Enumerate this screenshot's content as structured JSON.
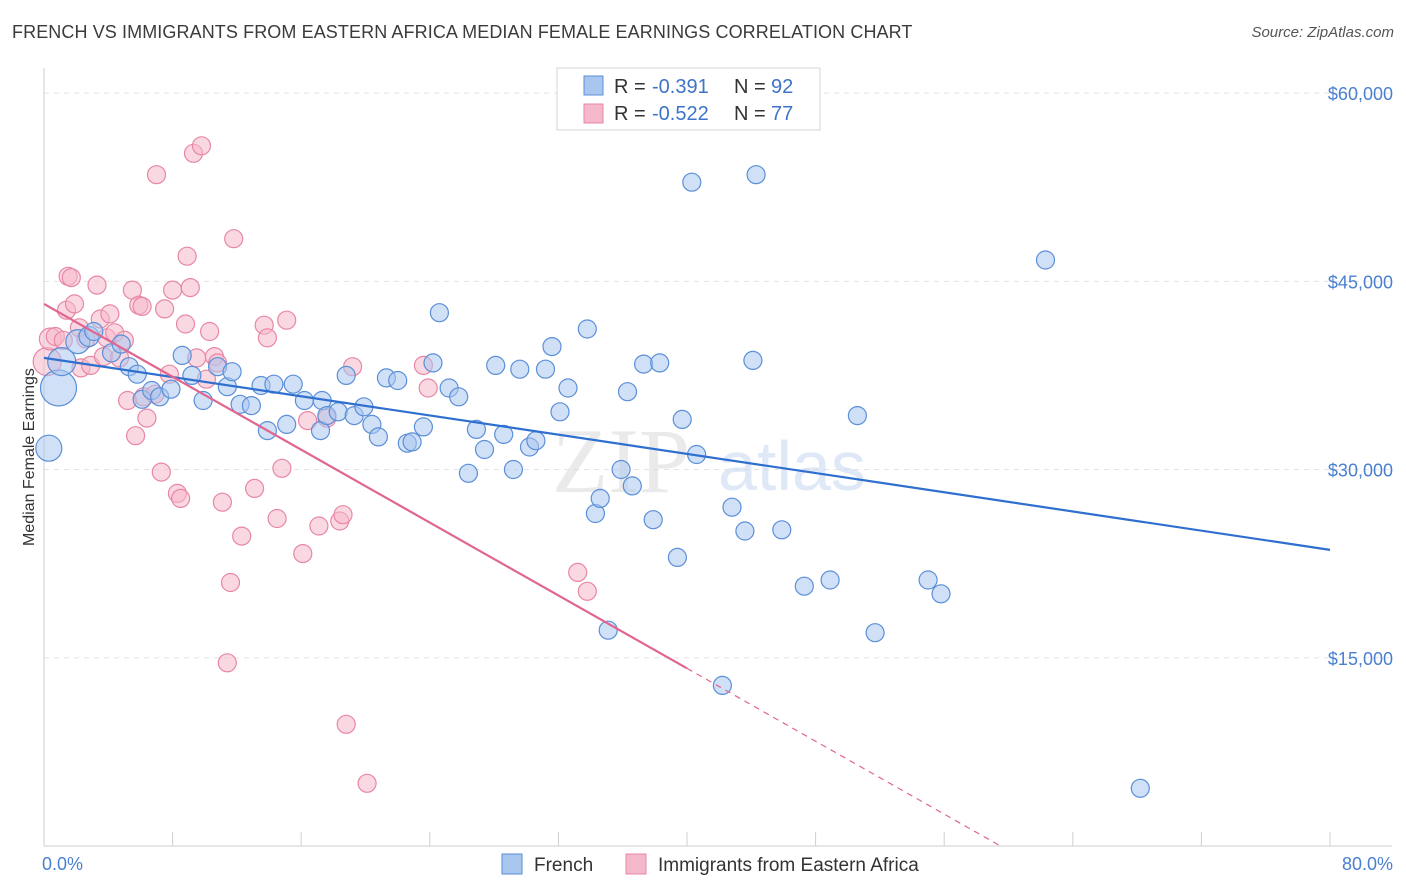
{
  "title": "FRENCH VS IMMIGRANTS FROM EASTERN AFRICA MEDIAN FEMALE EARNINGS CORRELATION CHART",
  "source": "Source: ZipAtlas.com",
  "watermark": {
    "zip": "ZIP",
    "atlas": "atlas"
  },
  "legend": {
    "r_label": "R =",
    "n_label": "N =",
    "french": {
      "r": "-0.391",
      "n": "92"
    },
    "immigrants": {
      "r": "-0.522",
      "n": "77"
    }
  },
  "colors": {
    "blue_fill": "#a9c6ef",
    "blue_stroke": "#5b8fd8",
    "blue_line": "#2f6fcf",
    "pink_fill": "#f5b8cb",
    "pink_stroke": "#e887a5",
    "pink_line": "#e0668f",
    "tick_text": "#4a7fd0",
    "grid": "#e3e3e3"
  },
  "chart_data": {
    "type": "scatter",
    "ylabel": "Median Female Earnings",
    "x_ticks": [
      "0.0%",
      "80.0%"
    ],
    "xlim": [
      0,
      80
    ],
    "ylim": [
      0,
      62000
    ],
    "y_ticks": [
      {
        "value": 15000,
        "label": "$15,000"
      },
      {
        "value": 30000,
        "label": "$30,000"
      },
      {
        "value": 45000,
        "label": "$45,000"
      },
      {
        "value": 60000,
        "label": "$60,000"
      }
    ],
    "grid": true,
    "series": [
      {
        "name": "French",
        "color": "blue",
        "r": -0.391,
        "n": 92,
        "trend": {
          "x0": 0,
          "y0": 38900,
          "x1": 80,
          "y1": 23600,
          "dashed_from": null
        },
        "points": [
          [
            0.3,
            31700,
            13
          ],
          [
            0.9,
            36500,
            18
          ],
          [
            1.1,
            38600,
            14
          ],
          [
            2.1,
            40200,
            12
          ],
          [
            2.8,
            40600,
            10
          ],
          [
            3.1,
            41000,
            9
          ],
          [
            4.2,
            39300,
            9
          ],
          [
            4.8,
            40000,
            9
          ],
          [
            5.3,
            38200,
            9
          ],
          [
            5.8,
            37600,
            9
          ],
          [
            6.1,
            35600,
            9
          ],
          [
            6.7,
            36300,
            9
          ],
          [
            7.2,
            35800,
            9
          ],
          [
            7.9,
            36400,
            9
          ],
          [
            8.6,
            39100,
            9
          ],
          [
            9.2,
            37500,
            9
          ],
          [
            9.9,
            35500,
            9
          ],
          [
            10.8,
            38200,
            9
          ],
          [
            11.4,
            36600,
            9
          ],
          [
            11.7,
            37800,
            9
          ],
          [
            12.2,
            35200,
            9
          ],
          [
            12.9,
            35100,
            9
          ],
          [
            13.5,
            36700,
            9
          ],
          [
            13.9,
            33100,
            9
          ],
          [
            14.3,
            36800,
            9
          ],
          [
            15.1,
            33600,
            9
          ],
          [
            15.5,
            36800,
            9
          ],
          [
            16.2,
            35500,
            9
          ],
          [
            17.2,
            33100,
            9
          ],
          [
            17.3,
            35500,
            9
          ],
          [
            17.6,
            34300,
            9
          ],
          [
            18.3,
            34600,
            9
          ],
          [
            18.8,
            37500,
            9
          ],
          [
            19.3,
            34300,
            9
          ],
          [
            19.9,
            35000,
            9
          ],
          [
            20.4,
            33600,
            9
          ],
          [
            20.8,
            32600,
            9
          ],
          [
            21.3,
            37300,
            9
          ],
          [
            22.0,
            37100,
            9
          ],
          [
            22.6,
            32100,
            9
          ],
          [
            22.9,
            32200,
            9
          ],
          [
            23.6,
            33400,
            9
          ],
          [
            24.2,
            38500,
            9
          ],
          [
            24.6,
            42500,
            9
          ],
          [
            25.2,
            36500,
            9
          ],
          [
            25.8,
            35800,
            9
          ],
          [
            26.4,
            29700,
            9
          ],
          [
            26.9,
            33200,
            9
          ],
          [
            27.4,
            31600,
            9
          ],
          [
            28.1,
            38300,
            9
          ],
          [
            28.6,
            32800,
            9
          ],
          [
            29.2,
            30000,
            9
          ],
          [
            29.6,
            38000,
            9
          ],
          [
            30.2,
            31800,
            9
          ],
          [
            30.6,
            32300,
            9
          ],
          [
            31.2,
            38000,
            9
          ],
          [
            31.6,
            39800,
            9
          ],
          [
            32.1,
            34600,
            9
          ],
          [
            32.6,
            36500,
            9
          ],
          [
            33.8,
            41200,
            9
          ],
          [
            34.3,
            26500,
            9
          ],
          [
            34.6,
            27700,
            9
          ],
          [
            35.1,
            17200,
            9
          ],
          [
            35.9,
            30000,
            9
          ],
          [
            36.3,
            36200,
            9
          ],
          [
            36.6,
            28700,
            9
          ],
          [
            37.3,
            38400,
            9
          ],
          [
            37.9,
            26000,
            9
          ],
          [
            38.3,
            38500,
            9
          ],
          [
            39.4,
            23000,
            9
          ],
          [
            39.7,
            34000,
            9
          ],
          [
            40.3,
            52900,
            9
          ],
          [
            40.6,
            31200,
            9
          ],
          [
            42.2,
            12800,
            9
          ],
          [
            42.8,
            27000,
            9
          ],
          [
            43.6,
            25100,
            9
          ],
          [
            44.1,
            38700,
            9
          ],
          [
            44.3,
            53500,
            9
          ],
          [
            45.9,
            25200,
            9
          ],
          [
            47.3,
            20700,
            9
          ],
          [
            48.9,
            21200,
            9
          ],
          [
            50.6,
            34300,
            9
          ],
          [
            51.7,
            17000,
            9
          ],
          [
            55.0,
            21200,
            9
          ],
          [
            55.8,
            20100,
            9
          ],
          [
            62.3,
            46700,
            9
          ],
          [
            68.2,
            4600,
            9
          ]
        ]
      },
      {
        "name": "Immigrants from Eastern Africa",
        "color": "pink",
        "r": -0.522,
        "n": 77,
        "trend": {
          "x0": 0,
          "y0": 43200,
          "x1": 59.5,
          "y1": 0,
          "dashed_from": 40
        },
        "points": [
          [
            0.2,
            38600,
            14
          ],
          [
            0.4,
            40400,
            11
          ],
          [
            0.7,
            40600,
            9
          ],
          [
            1.2,
            40300,
            9
          ],
          [
            1.4,
            42700,
            9
          ],
          [
            1.5,
            45400,
            9
          ],
          [
            1.7,
            45300,
            9
          ],
          [
            1.9,
            43200,
            9
          ],
          [
            2.2,
            41300,
            9
          ],
          [
            2.3,
            38100,
            9
          ],
          [
            2.6,
            40400,
            9
          ],
          [
            2.9,
            38300,
            9
          ],
          [
            3.3,
            44700,
            9
          ],
          [
            3.5,
            42000,
            9
          ],
          [
            3.7,
            39000,
            9
          ],
          [
            3.9,
            40500,
            9
          ],
          [
            4.1,
            42400,
            9
          ],
          [
            4.4,
            40900,
            9
          ],
          [
            4.7,
            38900,
            9
          ],
          [
            5.0,
            40300,
            9
          ],
          [
            5.2,
            35500,
            9
          ],
          [
            5.5,
            44300,
            9
          ],
          [
            5.7,
            32700,
            9
          ],
          [
            5.9,
            43100,
            9
          ],
          [
            6.1,
            43000,
            9
          ],
          [
            6.2,
            35800,
            9
          ],
          [
            6.4,
            34100,
            9
          ],
          [
            6.9,
            36000,
            9
          ],
          [
            7.0,
            53500,
            9
          ],
          [
            7.3,
            29800,
            9
          ],
          [
            7.5,
            42800,
            9
          ],
          [
            7.8,
            37600,
            9
          ],
          [
            8.0,
            44300,
            9
          ],
          [
            8.3,
            28100,
            9
          ],
          [
            8.5,
            27700,
            9
          ],
          [
            8.8,
            41600,
            9
          ],
          [
            8.9,
            47000,
            9
          ],
          [
            9.1,
            44500,
            9
          ],
          [
            9.3,
            55200,
            9
          ],
          [
            9.5,
            38900,
            9
          ],
          [
            9.8,
            55800,
            9
          ],
          [
            10.1,
            37200,
            9
          ],
          [
            10.3,
            41000,
            9
          ],
          [
            10.6,
            39000,
            9
          ],
          [
            10.8,
            38500,
            9
          ],
          [
            11.1,
            27400,
            9
          ],
          [
            11.4,
            14600,
            9
          ],
          [
            11.6,
            21000,
            9
          ],
          [
            11.8,
            48400,
            9
          ],
          [
            12.3,
            24700,
            9
          ],
          [
            13.1,
            28500,
            9
          ],
          [
            13.7,
            41500,
            9
          ],
          [
            13.9,
            40500,
            9
          ],
          [
            14.5,
            26100,
            9
          ],
          [
            14.8,
            30100,
            9
          ],
          [
            15.1,
            41900,
            9
          ],
          [
            16.1,
            23300,
            9
          ],
          [
            16.4,
            33900,
            9
          ],
          [
            17.1,
            25500,
            9
          ],
          [
            17.6,
            34100,
            9
          ],
          [
            18.4,
            25900,
            9
          ],
          [
            18.6,
            26400,
            9
          ],
          [
            18.8,
            9700,
            9
          ],
          [
            19.2,
            38200,
            9
          ],
          [
            20.1,
            5000,
            9
          ],
          [
            23.6,
            38300,
            9
          ],
          [
            23.9,
            36500,
            9
          ],
          [
            33.2,
            21800,
            9
          ],
          [
            33.8,
            20300,
            9
          ]
        ]
      }
    ],
    "bottom_legend": [
      "French",
      "Immigrants from Eastern Africa"
    ]
  }
}
